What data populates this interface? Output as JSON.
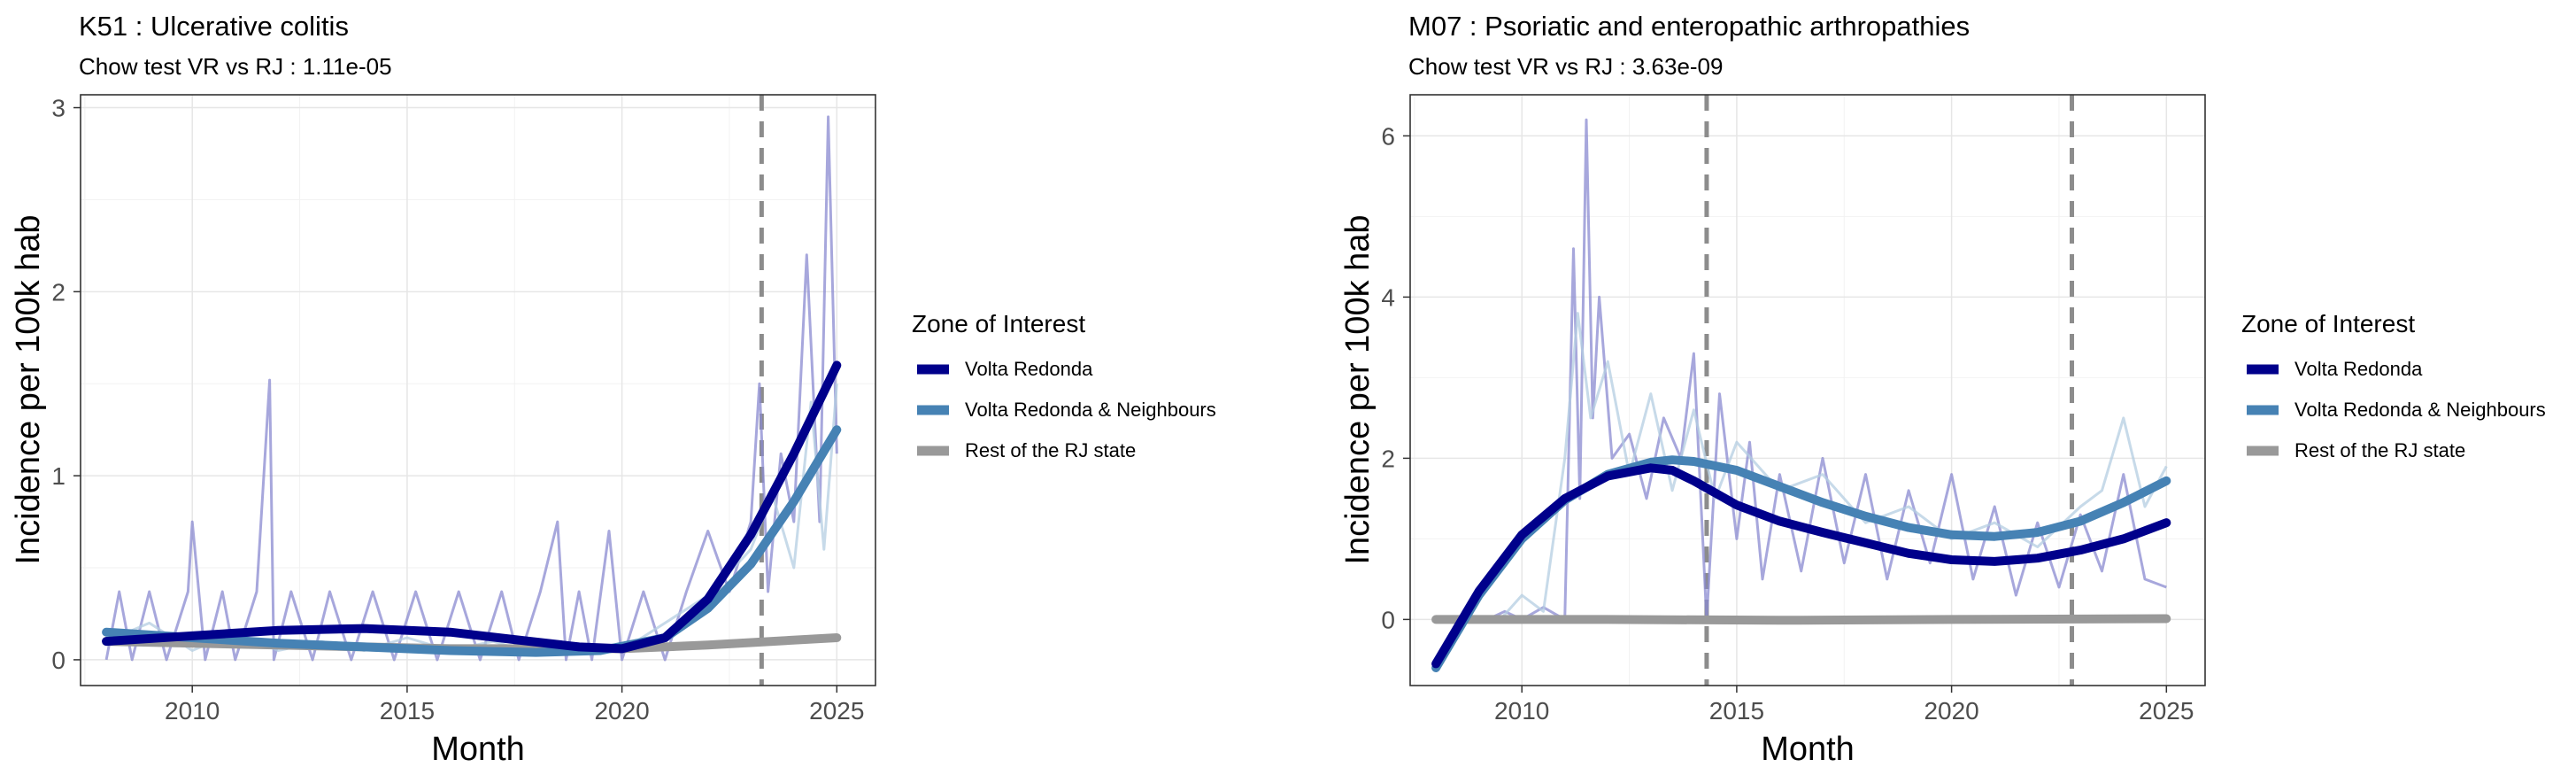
{
  "chart_data": [
    {
      "type": "line",
      "title": "K51 : Ulcerative colitis",
      "subtitle": "Chow test VR vs RJ : 1.11e-05",
      "xlabel": "Month",
      "ylabel": "Incidence per 100k hab",
      "xlim": [
        2007.4,
        2025.9
      ],
      "ylim": [
        -0.14,
        3.07
      ],
      "xticks": [
        2010,
        2015,
        2020,
        2025
      ],
      "xtick_labels": [
        "2010",
        "2015",
        "2020",
        "2025"
      ],
      "yticks": [
        0,
        1,
        2,
        3
      ],
      "ytick_labels": [
        "0",
        "1",
        "2",
        "3"
      ],
      "vlines": [
        2023.25
      ],
      "legend": {
        "title": "Zone of Interest",
        "entries": [
          "Volta Redonda",
          "Volta Redonda & Neighbours",
          "Rest of the RJ state"
        ]
      },
      "series": [
        {
          "name": "Volta Redonda",
          "color": "#00008b",
          "x": [
            2008,
            2010,
            2012,
            2014,
            2016,
            2017.5,
            2019,
            2020,
            2021,
            2022,
            2023,
            2024,
            2025
          ],
          "y": [
            0.1,
            0.13,
            0.16,
            0.17,
            0.15,
            0.11,
            0.07,
            0.06,
            0.12,
            0.33,
            0.68,
            1.12,
            1.6
          ]
        },
        {
          "name": "Volta Redonda & Neighbours",
          "color": "#4682b4",
          "x": [
            2008,
            2010,
            2012,
            2014,
            2016,
            2018,
            2019.5,
            2021,
            2022,
            2023,
            2024,
            2025
          ],
          "y": [
            0.15,
            0.12,
            0.09,
            0.07,
            0.05,
            0.04,
            0.05,
            0.12,
            0.28,
            0.52,
            0.86,
            1.25
          ]
        },
        {
          "name": "Rest of the RJ state",
          "color": "#999999",
          "x": [
            2008,
            2012,
            2016,
            2020,
            2022,
            2023.5,
            2025
          ],
          "y": [
            0.1,
            0.08,
            0.06,
            0.06,
            0.08,
            0.1,
            0.12
          ]
        }
      ],
      "raw_series": [
        {
          "name": "Volta Redonda (monthly)",
          "color": "#8a8ad0",
          "x": [
            2008,
            2008.3,
            2008.6,
            2009,
            2009.4,
            2009.9,
            2010,
            2010.3,
            2010.7,
            2011,
            2011.5,
            2011.8,
            2011.9,
            2012.3,
            2012.8,
            2013.2,
            2013.7,
            2014.2,
            2014.7,
            2015.2,
            2015.7,
            2016.2,
            2016.7,
            2017.2,
            2017.6,
            2018.1,
            2018.5,
            2018.7,
            2019,
            2019.3,
            2019.7,
            2020,
            2020.5,
            2021,
            2021.5,
            2022,
            2022.5,
            2023,
            2023.2,
            2023.4,
            2023.7,
            2024,
            2024.3,
            2024.6,
            2024.8,
            2025
          ],
          "y": [
            0.0,
            0.37,
            0.0,
            0.37,
            0.0,
            0.37,
            0.75,
            0.0,
            0.37,
            0.0,
            0.37,
            1.52,
            0.0,
            0.37,
            0.0,
            0.37,
            0.0,
            0.37,
            0.0,
            0.37,
            0.0,
            0.37,
            0.0,
            0.37,
            0.0,
            0.37,
            0.75,
            0.0,
            0.37,
            0.0,
            0.7,
            0.0,
            0.37,
            0.0,
            0.37,
            0.7,
            0.37,
            0.75,
            1.5,
            0.37,
            1.12,
            0.75,
            2.2,
            0.75,
            2.95,
            1.12
          ]
        },
        {
          "name": "Volta Redonda & Neighbours (monthly)",
          "color": "#b4cde2",
          "x": [
            2008,
            2009,
            2010,
            2011,
            2012,
            2013,
            2014,
            2015,
            2016,
            2017,
            2018,
            2019,
            2020,
            2021,
            2022,
            2023,
            2023.5,
            2024,
            2024.4,
            2024.7,
            2025
          ],
          "y": [
            0.1,
            0.2,
            0.05,
            0.15,
            0.05,
            0.1,
            0.05,
            0.12,
            0.05,
            0.1,
            0.03,
            0.08,
            0.05,
            0.2,
            0.35,
            0.6,
            0.9,
            0.5,
            1.4,
            0.6,
            1.5
          ]
        },
        {
          "name": "Rest of the RJ state (monthly)",
          "color": "#cfcfcf",
          "x": [
            2008,
            2010,
            2012,
            2014,
            2016,
            2018,
            2020,
            2022,
            2024,
            2025
          ],
          "y": [
            0.09,
            0.08,
            0.07,
            0.06,
            0.06,
            0.05,
            0.05,
            0.08,
            0.11,
            0.12
          ]
        }
      ]
    },
    {
      "type": "line",
      "title": "M07 : Psoriatic and enteropathic arthropathies",
      "subtitle": "Chow test VR vs RJ : 3.63e-09",
      "xlabel": "Month",
      "ylabel": "Incidence per 100k hab",
      "xlim": [
        2007.4,
        2025.9
      ],
      "ylim": [
        -0.82,
        6.51
      ],
      "xticks": [
        2010,
        2015,
        2020,
        2025
      ],
      "xtick_labels": [
        "2010",
        "2015",
        "2020",
        "2025"
      ],
      "yticks": [
        0,
        2,
        4,
        6
      ],
      "ytick_labels": [
        "0",
        "2",
        "4",
        "6"
      ],
      "vlines": [
        2014.3,
        2022.8
      ],
      "legend": {
        "title": "Zone of Interest",
        "entries": [
          "Volta Redonda",
          "Volta Redonda & Neighbours",
          "Rest of the RJ state"
        ]
      },
      "series": [
        {
          "name": "Volta Redonda",
          "color": "#00008b",
          "x": [
            2008,
            2009,
            2010,
            2011,
            2012,
            2013,
            2013.5,
            2014,
            2015,
            2016,
            2017,
            2018,
            2019,
            2020,
            2021,
            2022,
            2023,
            2024,
            2025
          ],
          "y": [
            -0.55,
            0.35,
            1.05,
            1.5,
            1.78,
            1.88,
            1.85,
            1.72,
            1.42,
            1.22,
            1.08,
            0.95,
            0.82,
            0.74,
            0.72,
            0.76,
            0.86,
            1.0,
            1.2
          ]
        },
        {
          "name": "Volta Redonda & Neighbours",
          "color": "#4682b4",
          "x": [
            2008,
            2009,
            2010,
            2011,
            2012,
            2013,
            2013.5,
            2014,
            2015,
            2016,
            2017,
            2018,
            2019,
            2020,
            2021,
            2022,
            2023,
            2024,
            2025
          ],
          "y": [
            -0.6,
            0.3,
            1.0,
            1.48,
            1.8,
            1.95,
            1.98,
            1.96,
            1.85,
            1.65,
            1.45,
            1.28,
            1.14,
            1.05,
            1.03,
            1.08,
            1.22,
            1.45,
            1.72
          ]
        },
        {
          "name": "Rest of the RJ state",
          "color": "#999999",
          "x": [
            2008,
            2012,
            2016,
            2020,
            2025
          ],
          "y": [
            0.0,
            0.0,
            -0.01,
            0.0,
            0.01
          ]
        }
      ],
      "raw_series": [
        {
          "name": "Volta Redonda (monthly)",
          "color": "#8a8ad0",
          "x": [
            2009.2,
            2009.6,
            2010,
            2010.5,
            2011,
            2011.2,
            2011.35,
            2011.5,
            2011.65,
            2011.8,
            2012.1,
            2012.5,
            2012.9,
            2013.3,
            2013.7,
            2014,
            2014.3,
            2014.6,
            2015,
            2015.3,
            2015.6,
            2016,
            2016.5,
            2017,
            2017.5,
            2018,
            2018.5,
            2019,
            2019.5,
            2020,
            2020.5,
            2021,
            2021.5,
            2022,
            2022.5,
            2023,
            2023.5,
            2024,
            2024.5,
            2025
          ],
          "y": [
            0.0,
            0.1,
            0.0,
            0.15,
            0.0,
            4.6,
            1.5,
            6.2,
            2.5,
            4.0,
            2.0,
            2.3,
            1.5,
            2.5,
            2.0,
            3.3,
            0.0,
            2.8,
            1.0,
            2.2,
            0.5,
            1.8,
            0.6,
            2.0,
            0.7,
            1.8,
            0.5,
            1.6,
            0.7,
            1.8,
            0.5,
            1.4,
            0.3,
            1.2,
            0.4,
            1.3,
            0.6,
            1.8,
            0.5,
            0.4
          ]
        },
        {
          "name": "Volta Redonda & Neighbours (monthly)",
          "color": "#b4cde2",
          "x": [
            2009.5,
            2010,
            2010.5,
            2011,
            2011.3,
            2011.6,
            2012,
            2012.5,
            2013,
            2013.5,
            2014,
            2014.5,
            2015,
            2016,
            2017,
            2018,
            2019,
            2020,
            2021,
            2022,
            2023,
            2023.5,
            2024,
            2024.5,
            2025
          ],
          "y": [
            0.0,
            0.3,
            0.1,
            2.0,
            3.8,
            2.5,
            3.2,
            1.8,
            2.8,
            1.6,
            2.6,
            1.5,
            2.2,
            1.6,
            1.8,
            1.2,
            1.4,
            1.0,
            1.2,
            0.9,
            1.4,
            1.6,
            2.5,
            1.4,
            1.9
          ]
        },
        {
          "name": "Rest of the RJ state (monthly)",
          "color": "#cfcfcf",
          "x": [
            2008,
            2025
          ],
          "y": [
            0.0,
            0.0
          ]
        }
      ]
    }
  ]
}
